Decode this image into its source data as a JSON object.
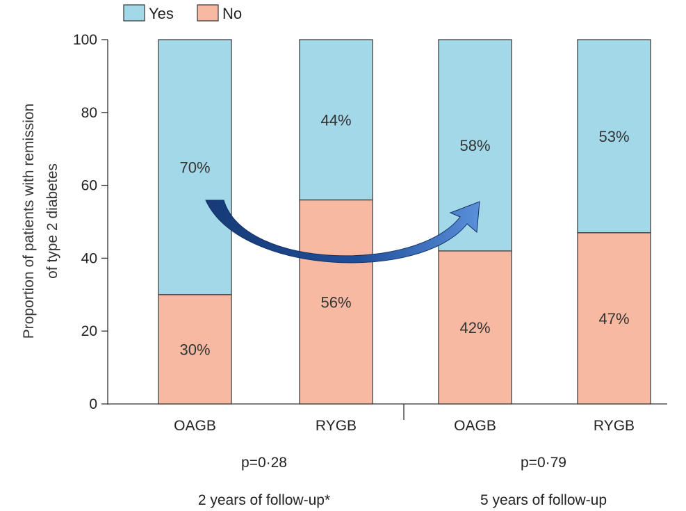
{
  "chart_data": {
    "type": "bar",
    "stacked": true,
    "categories": [
      "OAGB",
      "RYGB",
      "OAGB",
      "RYGB"
    ],
    "series": [
      {
        "name": "No",
        "values": [
          30,
          56,
          42,
          47
        ],
        "labels": [
          "30%",
          "56%",
          "42%",
          "47%"
        ]
      },
      {
        "name": "Yes",
        "values": [
          70,
          44,
          58,
          53
        ],
        "labels": [
          "70%",
          "44%",
          "58%",
          "53%"
        ]
      }
    ],
    "ylabel_line1": "Proportion of patients with remission",
    "ylabel_line2": "of type 2 diabetes",
    "ylim": [
      0,
      100
    ],
    "yticks": [
      "0",
      "20",
      "40",
      "60",
      "80",
      "100"
    ],
    "legend": {
      "position": "top-left",
      "entries": [
        "Yes",
        "No"
      ]
    },
    "groups": [
      {
        "pvalue": "p=0·28",
        "label": "2 years of follow-up*"
      },
      {
        "pvalue": "p=0·79",
        "label": "5 years of follow-up"
      }
    ],
    "grid": false,
    "annotation": "curved arrow from first OAGB bar to second OAGB bar"
  },
  "colors": {
    "yes": "#a3d8e8",
    "no": "#f7b9a1",
    "arrow_dark": "#163a76",
    "arrow_light": "#4a7fcf",
    "axis": "#333333"
  }
}
